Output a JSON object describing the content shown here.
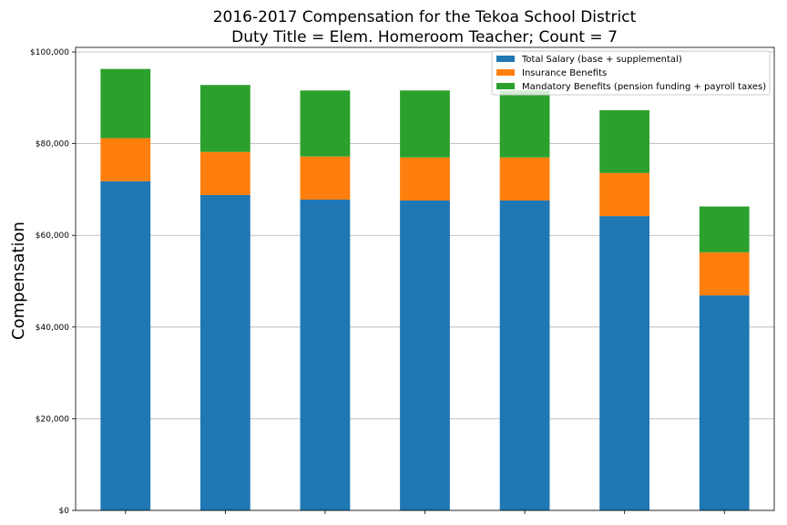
{
  "chart_data": {
    "type": "bar",
    "stacked": true,
    "title": "2016-2017 Compensation for the Tekoa School District",
    "subtitle": "Duty Title = Elem. Homeroom Teacher; Count = 7",
    "xlabel": "",
    "ylabel": "Compensation",
    "ylim": [
      0,
      101000
    ],
    "yticks": [
      0,
      20000,
      40000,
      60000,
      80000,
      100000
    ],
    "ytick_labels": [
      "$0",
      "$20,000",
      "$40,000",
      "$60,000",
      "$80,000",
      "$100,000"
    ],
    "grid": "horizontal",
    "legend_position": "top-right",
    "categories": [
      "",
      "",
      "",
      "",
      "",
      "",
      ""
    ],
    "series": [
      {
        "name": "Total Salary (base + supplemental)",
        "color": "#1f77b4",
        "values": [
          71800,
          68800,
          67800,
          67600,
          67600,
          64200,
          46900
        ]
      },
      {
        "name": "Insurance Benefits",
        "color": "#ff7f0e",
        "values": [
          9400,
          9400,
          9400,
          9400,
          9400,
          9400,
          9400
        ]
      },
      {
        "name": "Mandatory Benefits (pension funding + payroll taxes)",
        "color": "#2ca02c",
        "values": [
          15100,
          14600,
          14400,
          14600,
          14600,
          13700,
          10000
        ]
      }
    ]
  }
}
